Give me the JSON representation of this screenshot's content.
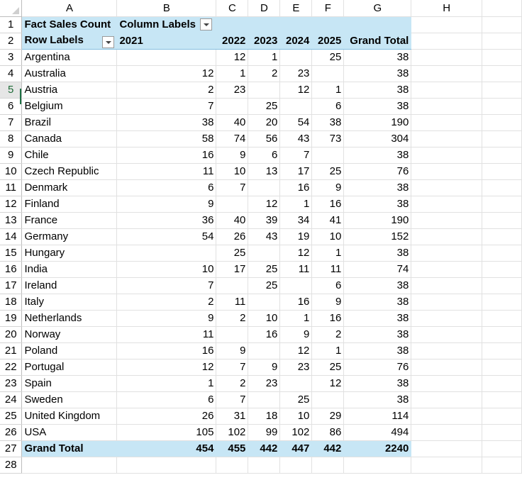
{
  "columns": [
    "A",
    "B",
    "C",
    "D",
    "E",
    "F",
    "G",
    "H"
  ],
  "row_numbers": [
    "1",
    "2",
    "3",
    "4",
    "5",
    "6",
    "7",
    "8",
    "9",
    "10",
    "11",
    "12",
    "13",
    "14",
    "15",
    "16",
    "17",
    "18",
    "19",
    "20",
    "21",
    "22",
    "23",
    "24",
    "25",
    "26",
    "27",
    "28"
  ],
  "pivot": {
    "title": "Fact Sales Count",
    "column_labels": "Column Labels",
    "row_labels": "Row Labels",
    "years": [
      "2021",
      "2022",
      "2023",
      "2024",
      "2025"
    ],
    "grand_total_label": "Grand Total",
    "rows": [
      {
        "country": "Argentina",
        "values": [
          "",
          "12",
          "1",
          "",
          "25"
        ],
        "total": "38"
      },
      {
        "country": "Australia",
        "values": [
          "12",
          "1",
          "2",
          "23",
          ""
        ],
        "total": "38"
      },
      {
        "country": "Austria",
        "values": [
          "2",
          "23",
          "",
          "12",
          "1"
        ],
        "total": "38"
      },
      {
        "country": "Belgium",
        "values": [
          "7",
          "",
          "25",
          "",
          "6"
        ],
        "total": "38"
      },
      {
        "country": "Brazil",
        "values": [
          "38",
          "40",
          "20",
          "54",
          "38"
        ],
        "total": "190"
      },
      {
        "country": "Canada",
        "values": [
          "58",
          "74",
          "56",
          "43",
          "73"
        ],
        "total": "304"
      },
      {
        "country": "Chile",
        "values": [
          "16",
          "9",
          "6",
          "7",
          ""
        ],
        "total": "38"
      },
      {
        "country": "Czech Republic",
        "values": [
          "11",
          "10",
          "13",
          "17",
          "25"
        ],
        "total": "76"
      },
      {
        "country": "Denmark",
        "values": [
          "6",
          "7",
          "",
          "16",
          "9"
        ],
        "total": "38"
      },
      {
        "country": "Finland",
        "values": [
          "9",
          "",
          "12",
          "1",
          "16"
        ],
        "total": "38"
      },
      {
        "country": "France",
        "values": [
          "36",
          "40",
          "39",
          "34",
          "41"
        ],
        "total": "190"
      },
      {
        "country": "Germany",
        "values": [
          "54",
          "26",
          "43",
          "19",
          "10"
        ],
        "total": "152"
      },
      {
        "country": "Hungary",
        "values": [
          "",
          "25",
          "",
          "12",
          "1"
        ],
        "total": "38"
      },
      {
        "country": "India",
        "values": [
          "10",
          "17",
          "25",
          "11",
          "11"
        ],
        "total": "74"
      },
      {
        "country": "Ireland",
        "values": [
          "7",
          "",
          "25",
          "",
          "6"
        ],
        "total": "38"
      },
      {
        "country": "Italy",
        "values": [
          "2",
          "11",
          "",
          "16",
          "9"
        ],
        "total": "38"
      },
      {
        "country": "Netherlands",
        "values": [
          "9",
          "2",
          "10",
          "1",
          "16"
        ],
        "total": "38"
      },
      {
        "country": "Norway",
        "values": [
          "11",
          "",
          "16",
          "9",
          "2"
        ],
        "total": "38"
      },
      {
        "country": "Poland",
        "values": [
          "16",
          "9",
          "",
          "12",
          "1"
        ],
        "total": "38"
      },
      {
        "country": "Portugal",
        "values": [
          "12",
          "7",
          "9",
          "23",
          "25"
        ],
        "total": "76"
      },
      {
        "country": "Spain",
        "values": [
          "1",
          "2",
          "23",
          "",
          "12"
        ],
        "total": "38"
      },
      {
        "country": "Sweden",
        "values": [
          "6",
          "7",
          "",
          "25",
          ""
        ],
        "total": "38"
      },
      {
        "country": "United Kingdom",
        "values": [
          "26",
          "31",
          "18",
          "10",
          "29"
        ],
        "total": "114"
      },
      {
        "country": "USA",
        "values": [
          "105",
          "102",
          "99",
          "102",
          "86"
        ],
        "total": "494"
      }
    ],
    "grand_totals": [
      "454",
      "455",
      "442",
      "447",
      "442"
    ],
    "grand_total_all": "2240"
  }
}
